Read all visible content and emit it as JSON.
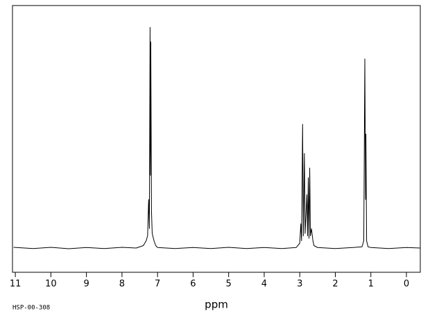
{
  "chart_data": {
    "type": "line",
    "xlabel": "ppm",
    "annotation": "HSP-00-308",
    "color": "#000000",
    "xlim": [
      11.08,
      -0.39
    ],
    "ylim": [
      -10,
      100
    ],
    "xticks": [
      11,
      10,
      9,
      8,
      7,
      6,
      5,
      4,
      3,
      2,
      1,
      0
    ],
    "x": [
      11.05,
      10.5,
      10,
      9.5,
      9,
      8.5,
      8,
      7.6,
      7.4,
      7.32,
      7.28,
      7.25,
      7.23,
      7.21,
      7.2,
      7.19,
      7.17,
      7.15,
      7.1,
      7.05,
      7.0,
      6.5,
      6,
      5.5,
      5,
      4.5,
      4,
      3.5,
      3.1,
      3.0,
      2.97,
      2.95,
      2.92,
      2.9,
      2.87,
      2.85,
      2.8,
      2.78,
      2.76,
      2.74,
      2.72,
      2.7,
      2.67,
      2.63,
      2.6,
      2.5,
      2,
      1.5,
      1.25,
      1.2,
      1.17,
      1.15,
      1.14,
      1.12,
      1.08,
      1.0,
      0.5,
      0,
      -0.39
    ],
    "values": [
      0.3,
      -0.2,
      0.3,
      -0.3,
      0.2,
      -0.2,
      0.3,
      0,
      1,
      3,
      5,
      20,
      8,
      91,
      30,
      85,
      15,
      6,
      3,
      1,
      0.2,
      -0.2,
      0.2,
      -0.2,
      0.3,
      -0.2,
      0.2,
      -0.2,
      0.2,
      2,
      10,
      3,
      51,
      5,
      39,
      6,
      22,
      5,
      29,
      4,
      33,
      5,
      8,
      3,
      1,
      0.2,
      -0.2,
      0.2,
      0.5,
      3,
      78,
      20,
      47,
      3,
      0.5,
      0.2,
      -0.2,
      0.2,
      0
    ]
  }
}
